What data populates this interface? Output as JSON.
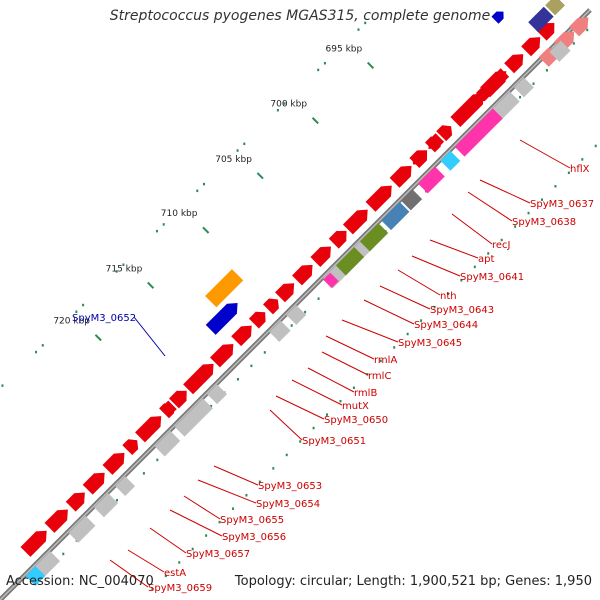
{
  "title": "Streptococcus pyogenes MGAS315, complete genome",
  "accession": "Accession: NC_004070",
  "topology": "Topology: circular; Length: 1,900,521 bp; Genes: 1,950",
  "tick_labels": [
    "695 kbp",
    "700 kbp",
    "705 kbp",
    "710 kbp",
    "715 kbp",
    "720 kbp"
  ],
  "gene_labels": [
    "hflX",
    "SpyM3_0637",
    "SpyM3_0638",
    "recJ",
    "apt",
    "SpyM3_0641",
    "nth",
    "SpyM3_0643",
    "SpyM3_0644",
    "SpyM3_0645",
    "rmlA",
    "rmlC",
    "rmlB",
    "mutX",
    "SpyM3_0650",
    "SpyM3_0651",
    "SpyM3_0652",
    "SpyM3_0653",
    "SpyM3_0654",
    "SpyM3_0655",
    "SpyM3_0656",
    "SpyM3_0657",
    "estA",
    "SpyM3_0659"
  ],
  "colors": {
    "backbone": "#7a7a7a",
    "cds_forward": "#e8000b",
    "cds_light": "#f08080",
    "gene_grey": "#c0c0c0",
    "magenta": "#ff33aa",
    "cyan": "#33ccff",
    "dark_grey": "#707070",
    "olive": "#6b8e23",
    "steel_blue": "#4682b4",
    "orange": "#ff9900",
    "blue": "#0000cc",
    "navy": "#333399",
    "khaki": "#aaa060",
    "tick_green": "#2e8b57",
    "label_red": "#cc0000",
    "label_blue": "#0000aa"
  }
}
